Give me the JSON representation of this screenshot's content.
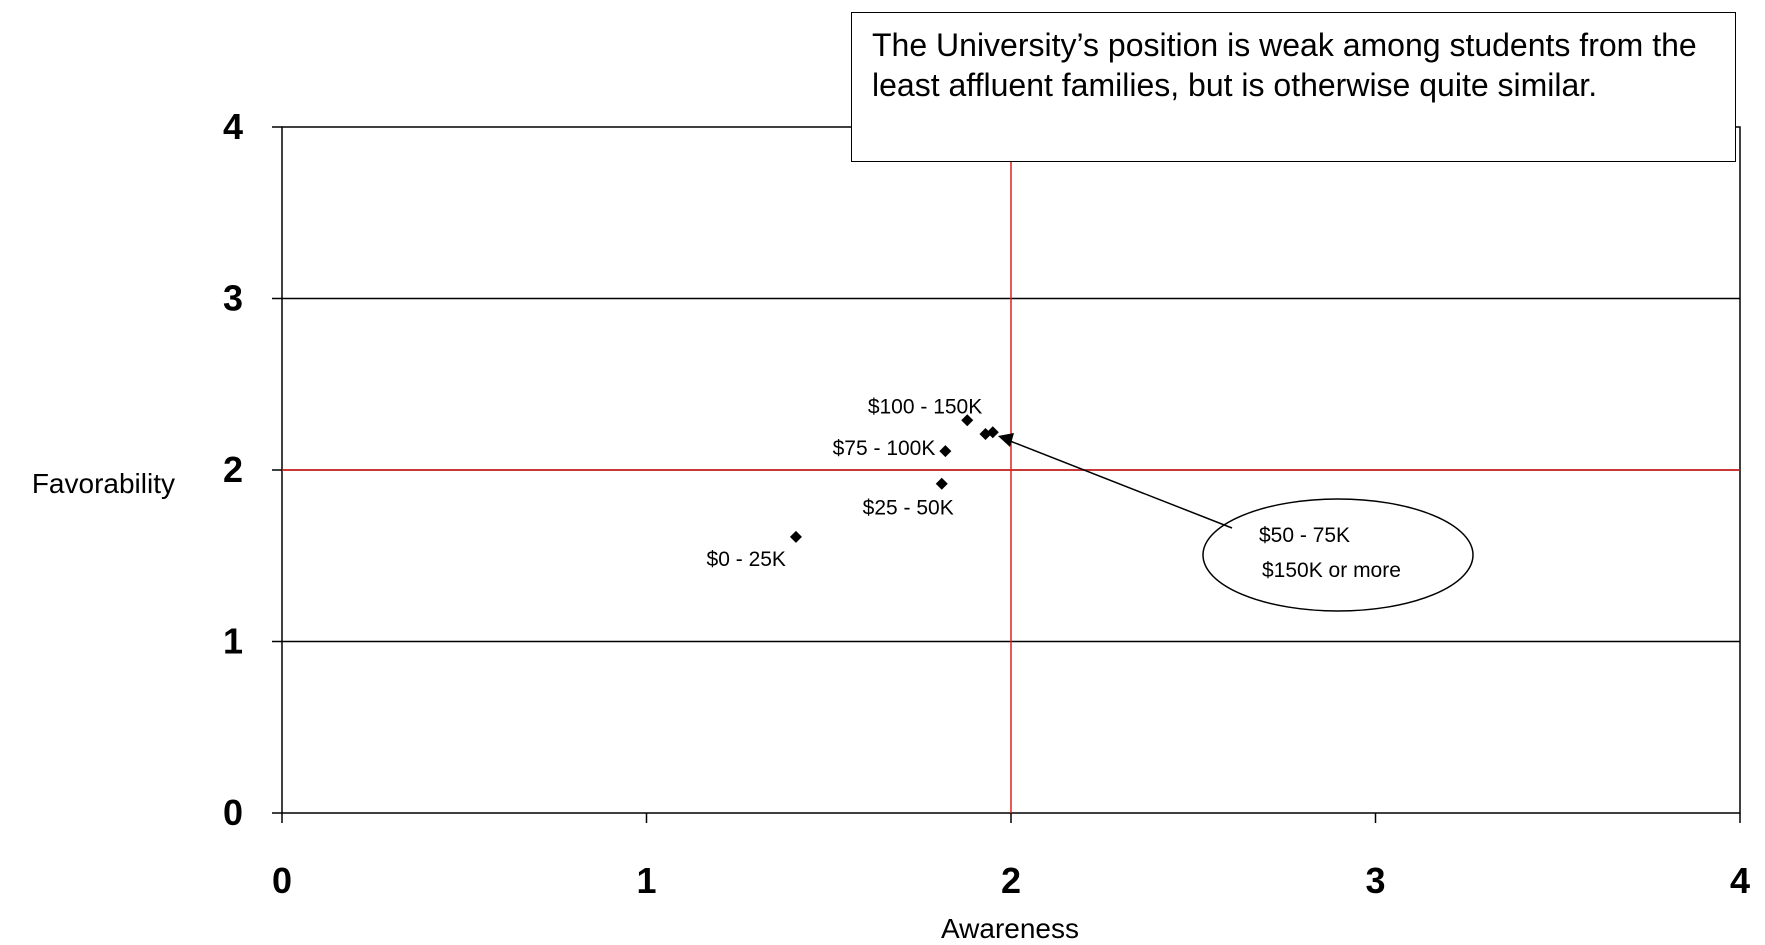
{
  "chart_data": {
    "type": "scatter",
    "xlabel": "Awareness",
    "ylabel": "Favorability",
    "xlim": [
      0,
      4
    ],
    "ylim": [
      0,
      4
    ],
    "xticks": [
      "0",
      "1",
      "2",
      "3",
      "4"
    ],
    "yticks": [
      "0",
      "1",
      "2",
      "3",
      "4"
    ],
    "grid": "horizontal",
    "reference_lines": {
      "x": 2,
      "y": 2,
      "color": "#e0201b"
    },
    "points": [
      {
        "label": "$0 - 25K",
        "x": 1.41,
        "y": 1.61
      },
      {
        "label": "$25 - 50K",
        "x": 1.81,
        "y": 1.92
      },
      {
        "label": "$75 - 100K",
        "x": 1.82,
        "y": 2.11
      },
      {
        "label": "$100 - 150K",
        "x": 1.88,
        "y": 2.29
      },
      {
        "label": "$50 - 75K",
        "x": 1.93,
        "y": 2.21
      },
      {
        "label": "$150K or more",
        "x": 1.95,
        "y": 2.22
      }
    ],
    "callout": [
      "$50 - 75K",
      "$150K or more"
    ],
    "annotation": "The University’s position is weak among students from the least affluent families, but is otherwise quite similar."
  }
}
